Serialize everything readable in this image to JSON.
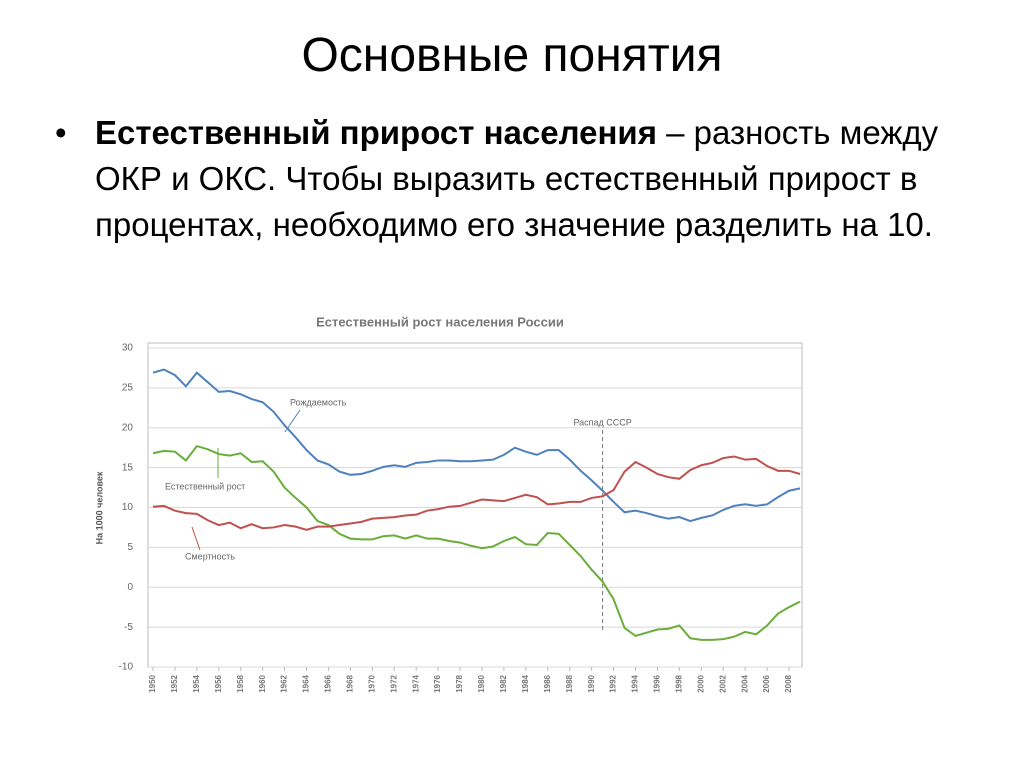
{
  "slide": {
    "title": "Основные понятия",
    "bullet": {
      "term": "Естественный прирост населения",
      "text": "– разность между ОКР и ОКС. Чтобы выразить естественный прирост в процентах, необходимо его значение разделить на 10."
    }
  },
  "chart_data": {
    "type": "line",
    "title": "Естественный рост населения России",
    "y_label": "На 1000 человек",
    "x": [
      1950,
      1951,
      1952,
      1953,
      1954,
      1955,
      1956,
      1957,
      1958,
      1959,
      1960,
      1961,
      1962,
      1963,
      1964,
      1965,
      1966,
      1967,
      1968,
      1969,
      1970,
      1971,
      1972,
      1973,
      1974,
      1975,
      1976,
      1977,
      1978,
      1979,
      1980,
      1981,
      1982,
      1983,
      1984,
      1985,
      1986,
      1987,
      1988,
      1989,
      1990,
      1991,
      1992,
      1993,
      1994,
      1995,
      1996,
      1997,
      1998,
      1999,
      2000,
      2001,
      2002,
      2003,
      2004,
      2005,
      2006,
      2007,
      2008,
      2009
    ],
    "series": [
      {
        "name": "Рождаемость",
        "color": "#4f81bd",
        "values": [
          26.9,
          27.3,
          26.6,
          25.2,
          26.9,
          25.7,
          24.5,
          24.6,
          24.2,
          23.6,
          23.2,
          22.0,
          20.3,
          18.8,
          17.2,
          15.9,
          15.4,
          14.5,
          14.1,
          14.2,
          14.6,
          15.1,
          15.3,
          15.1,
          15.6,
          15.7,
          15.9,
          15.9,
          15.8,
          15.8,
          15.9,
          16.0,
          16.6,
          17.5,
          17.0,
          16.6,
          17.2,
          17.2,
          16.0,
          14.6,
          13.4,
          12.1,
          10.7,
          9.4,
          9.6,
          9.3,
          8.9,
          8.6,
          8.8,
          8.3,
          8.7,
          9.0,
          9.7,
          10.2,
          10.4,
          10.2,
          10.4,
          11.3,
          12.1,
          12.4
        ]
      },
      {
        "name": "Естественный рост",
        "color": "#6aad3b",
        "values": [
          16.8,
          17.1,
          17.0,
          15.9,
          17.7,
          17.3,
          16.7,
          16.5,
          16.8,
          15.7,
          15.8,
          14.5,
          12.5,
          11.2,
          10.0,
          8.3,
          7.8,
          6.7,
          6.1,
          6.0,
          6.0,
          6.4,
          6.5,
          6.1,
          6.5,
          6.1,
          6.1,
          5.8,
          5.6,
          5.2,
          4.9,
          5.1,
          5.8,
          6.3,
          5.4,
          5.3,
          6.8,
          6.7,
          5.3,
          3.9,
          2.2,
          0.7,
          -1.5,
          -5.1,
          -6.1,
          -5.7,
          -5.3,
          -5.2,
          -4.8,
          -6.4,
          -6.6,
          -6.6,
          -6.5,
          -6.2,
          -5.6,
          -5.9,
          -4.8,
          -3.3,
          -2.5,
          -1.8
        ]
      },
      {
        "name": "Смертность",
        "color": "#c0504d",
        "values": [
          10.1,
          10.2,
          9.6,
          9.3,
          9.2,
          8.4,
          7.8,
          8.1,
          7.4,
          7.9,
          7.4,
          7.5,
          7.8,
          7.6,
          7.2,
          7.6,
          7.6,
          7.8,
          8.0,
          8.2,
          8.6,
          8.7,
          8.8,
          9.0,
          9.1,
          9.6,
          9.8,
          10.1,
          10.2,
          10.6,
          11.0,
          10.9,
          10.8,
          11.2,
          11.6,
          11.3,
          10.4,
          10.5,
          10.7,
          10.7,
          11.2,
          11.4,
          12.2,
          14.5,
          15.7,
          15.0,
          14.2,
          13.8,
          13.6,
          14.7,
          15.3,
          15.6,
          16.2,
          16.4,
          16.0,
          16.1,
          15.2,
          14.6,
          14.6,
          14.2
        ]
      }
    ],
    "annotation": {
      "text": "Распад СССР",
      "x": 1991
    },
    "xlim": [
      1950,
      2009
    ],
    "xticks": [
      1950,
      1952,
      1954,
      1956,
      1958,
      1960,
      1962,
      1964,
      1966,
      1968,
      1970,
      1972,
      1974,
      1976,
      1978,
      1980,
      1982,
      1984,
      1986,
      1988,
      1990,
      1992,
      1994,
      1996,
      1998,
      2000,
      2002,
      2004,
      2006,
      2008
    ],
    "ylim": [
      -10,
      30
    ],
    "yticks": [
      -10,
      -5,
      0,
      5,
      10,
      15,
      20,
      25,
      30
    ],
    "grid": true
  }
}
